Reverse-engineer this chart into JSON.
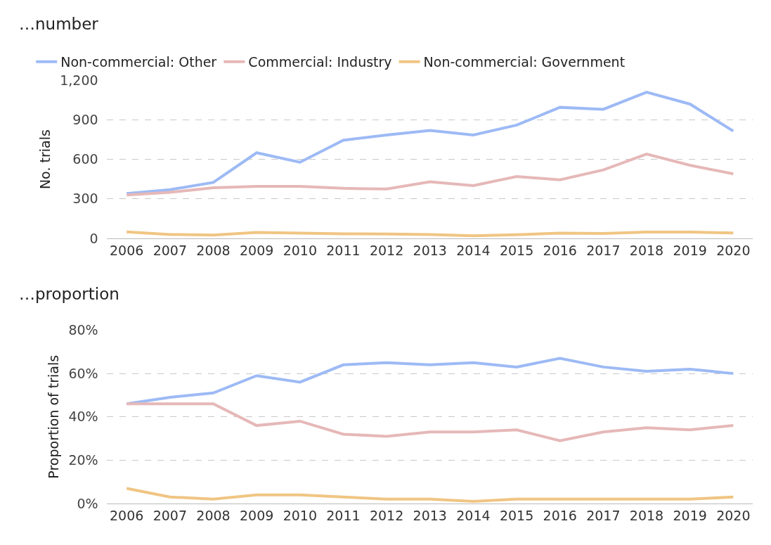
{
  "chart_data": [
    {
      "type": "line",
      "title": "…number",
      "ylabel": "No. trials",
      "categories": [
        "2006",
        "2007",
        "2008",
        "2009",
        "2010",
        "2011",
        "2012",
        "2013",
        "2014",
        "2015",
        "2016",
        "2017",
        "2018",
        "2019",
        "2020"
      ],
      "ylim": [
        0,
        1200
      ],
      "yticks": [
        0,
        300,
        600,
        900,
        {
          "value": 1200,
          "label": "1,200"
        }
      ],
      "grid": "y",
      "legend": "top left",
      "marker": "none",
      "line_style": "solid",
      "series": [
        {
          "name": "Non-commercial: Other",
          "color": "#9dbaf5",
          "values": [
            340,
            370,
            425,
            650,
            578,
            745,
            785,
            820,
            785,
            860,
            995,
            980,
            1110,
            1020,
            815
          ]
        },
        {
          "name": "Commercial: Industry",
          "color": "#e6b8b8",
          "values": [
            330,
            350,
            385,
            395,
            395,
            380,
            375,
            430,
            400,
            470,
            445,
            520,
            640,
            555,
            490
          ]
        },
        {
          "name": "Non-commercial: Government",
          "color": "#f0c583",
          "values": [
            50,
            30,
            25,
            45,
            40,
            35,
            33,
            30,
            20,
            28,
            40,
            38,
            48,
            48,
            42
          ]
        }
      ]
    },
    {
      "type": "line",
      "title": "…proportion",
      "ylabel": "Proportion of trials",
      "categories": [
        "2006",
        "2007",
        "2008",
        "2009",
        "2010",
        "2011",
        "2012",
        "2013",
        "2014",
        "2015",
        "2016",
        "2017",
        "2018",
        "2019",
        "2020"
      ],
      "ylim": [
        0,
        80
      ],
      "yticks": [
        {
          "value": 0,
          "label": "0%"
        },
        {
          "value": 20,
          "label": "20%"
        },
        {
          "value": 40,
          "label": "40%"
        },
        {
          "value": 60,
          "label": "60%"
        },
        {
          "value": 80,
          "label": "80%"
        }
      ],
      "grid": "y",
      "marker": "none",
      "line_style": "solid",
      "series": [
        {
          "color": "#9dbaf5",
          "values": [
            46,
            49,
            51,
            59,
            56,
            64,
            65,
            64,
            65,
            63,
            67,
            63,
            61,
            62,
            60
          ]
        },
        {
          "color": "#e6b8b8",
          "values": [
            46,
            46,
            46,
            36,
            38,
            32,
            31,
            33,
            33,
            34,
            29,
            33,
            35,
            34,
            36
          ]
        },
        {
          "color": "#f0c583",
          "values": [
            7,
            3,
            2,
            4,
            4,
            3,
            2,
            2,
            1,
            2,
            2,
            2,
            2,
            2,
            3
          ]
        }
      ]
    }
  ]
}
